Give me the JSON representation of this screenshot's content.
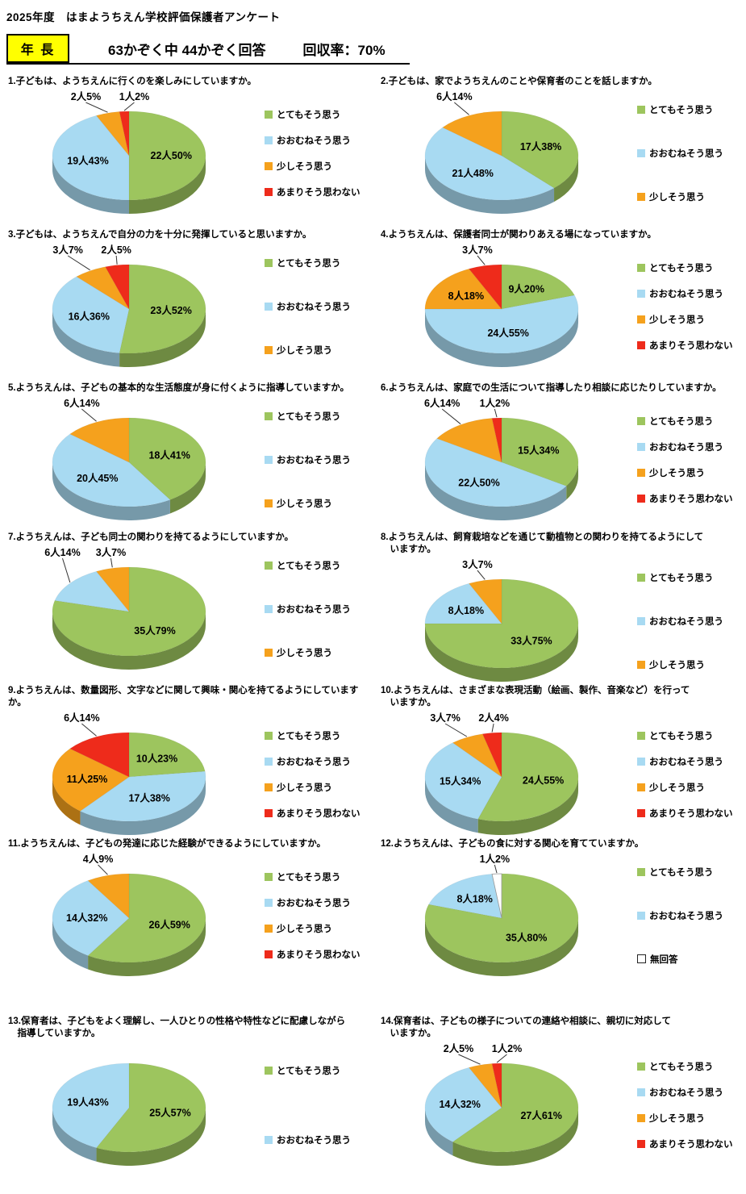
{
  "header": {
    "title": "2025年度　はまようちえん学校評価保護者アンケート",
    "grade": "年 長",
    "respondents": "63かぞく中 44かぞく回答",
    "rate": "回収率：70%",
    "grade_bg": "#FFFF00"
  },
  "colors": {
    "とてもそう思う": "#9DC55E",
    "おおむねそう思う": "#A8DAF2",
    "少しそう思う": "#F5A11D",
    "あまりそう思わない": "#EE2B1B",
    "無回答": "#FFFFFF"
  },
  "chart_data": [
    {
      "type": "pie",
      "title": "1.子どもは、ようちえんに行くのを楽しみにしていますか。",
      "slices": [
        {
          "answer": "とてもそう思う",
          "count": 22,
          "pct": 50,
          "label": "22人50%"
        },
        {
          "answer": "おおむねそう思う",
          "count": 19,
          "pct": 43,
          "label": "19人43%"
        },
        {
          "answer": "少しそう思う",
          "count": 2,
          "pct": 5,
          "label": "2人5%"
        },
        {
          "answer": "あまりそう思わない",
          "count": 1,
          "pct": 2,
          "label": "1人2%"
        }
      ],
      "legend": [
        "とてもそう思う",
        "おおむねそう思う",
        "少しそう思う",
        "あまりそう思わない"
      ]
    },
    {
      "type": "pie",
      "title": "2.子どもは、家でようちえんのことや保育者のことを話しますか。",
      "slices": [
        {
          "answer": "とてもそう思う",
          "count": 17,
          "pct": 38,
          "label": "17人38%"
        },
        {
          "answer": "おおむねそう思う",
          "count": 21,
          "pct": 48,
          "label": "21人48%"
        },
        {
          "answer": "少しそう思う",
          "count": 6,
          "pct": 14,
          "label": "6人14%"
        }
      ],
      "legend": [
        "とてもそう思う",
        "おおむねそう思う",
        "少しそう思う"
      ]
    },
    {
      "type": "pie",
      "title": "3.子どもは、ようちえんで自分の力を十分に発揮していると思いますか。",
      "slices": [
        {
          "answer": "とてもそう思う",
          "count": 23,
          "pct": 52,
          "label": "23人52%"
        },
        {
          "answer": "おおむねそう思う",
          "count": 16,
          "pct": 36,
          "label": "16人36%"
        },
        {
          "answer": "少しそう思う",
          "count": 3,
          "pct": 7,
          "label": "3人7%"
        },
        {
          "answer": "あまりそう思わない",
          "count": 2,
          "pct": 5,
          "label": "2人5%"
        }
      ],
      "legend": [
        "とてもそう思う",
        "おおむねそう思う",
        "少しそう思う"
      ]
    },
    {
      "type": "pie",
      "title": "4.ようちえんは、保護者同士が関わりあえる場になっていますか。",
      "slices": [
        {
          "answer": "とてもそう思う",
          "count": 9,
          "pct": 20,
          "label": "9人20%"
        },
        {
          "answer": "おおむねそう思う",
          "count": 24,
          "pct": 55,
          "label": "24人55%"
        },
        {
          "answer": "少しそう思う",
          "count": 8,
          "pct": 18,
          "label": "8人18%"
        },
        {
          "answer": "あまりそう思わない",
          "count": 3,
          "pct": 7,
          "label": "3人7%"
        }
      ],
      "legend": [
        "とてもそう思う",
        "おおむねそう思う",
        "少しそう思う",
        "あまりそう思わない"
      ]
    },
    {
      "type": "pie",
      "title": "5.ようちえんは、子どもの基本的な生活態度が身に付くように指導していますか。",
      "slices": [
        {
          "answer": "とてもそう思う",
          "count": 18,
          "pct": 41,
          "label": "18人41%"
        },
        {
          "answer": "おおむねそう思う",
          "count": 20,
          "pct": 45,
          "label": "20人45%"
        },
        {
          "answer": "少しそう思う",
          "count": 6,
          "pct": 14,
          "label": "6人14%"
        }
      ],
      "legend": [
        "とてもそう思う",
        "おおむねそう思う",
        "少しそう思う"
      ]
    },
    {
      "type": "pie",
      "title": "6.ようちえんは、家庭での生活について指導したり相談に応じたりしていますか。",
      "slices": [
        {
          "answer": "とてもそう思う",
          "count": 15,
          "pct": 34,
          "label": "15人34%"
        },
        {
          "answer": "おおむねそう思う",
          "count": 22,
          "pct": 50,
          "label": "22人50%"
        },
        {
          "answer": "少しそう思う",
          "count": 6,
          "pct": 14,
          "label": "6人14%"
        },
        {
          "answer": "あまりそう思わない",
          "count": 1,
          "pct": 2,
          "label": "1人2%"
        }
      ],
      "legend": [
        "とてもそう思う",
        "おおむねそう思う",
        "少しそう思う",
        "あまりそう思わない"
      ]
    },
    {
      "type": "pie",
      "title": "7.ようちえんは、子ども同士の関わりを持てるようにしていますか。",
      "slices": [
        {
          "answer": "とてもそう思う",
          "count": 35,
          "pct": 79,
          "label": "35人79%"
        },
        {
          "answer": "おおむねそう思う",
          "count": 6,
          "pct": 14,
          "label": "6人14%"
        },
        {
          "answer": "少しそう思う",
          "count": 3,
          "pct": 7,
          "label": "3人7%"
        }
      ],
      "legend": [
        "とてもそう思う",
        "おおむねそう思う",
        "少しそう思う"
      ]
    },
    {
      "type": "pie",
      "title": "8.ようちえんは、飼育栽培などを通じて動植物との関わりを持てるようにして\n　いますか。",
      "slices": [
        {
          "answer": "とてもそう思う",
          "count": 33,
          "pct": 75,
          "label": "33人75%"
        },
        {
          "answer": "おおむねそう思う",
          "count": 8,
          "pct": 18,
          "label": "8人18%"
        },
        {
          "answer": "少しそう思う",
          "count": 3,
          "pct": 7,
          "label": "3人7%"
        }
      ],
      "legend": [
        "とてもそう思う",
        "おおむねそう思う",
        "少しそう思う"
      ]
    },
    {
      "type": "pie",
      "title": "9.ようちえんは、数量図形、文字などに関して興味・関心を持てるようにしていますか。",
      "slices": [
        {
          "answer": "とてもそう思う",
          "count": 10,
          "pct": 23,
          "label": "10人23%"
        },
        {
          "answer": "おおむねそう思う",
          "count": 17,
          "pct": 38,
          "label": "17人38%"
        },
        {
          "answer": "少しそう思う",
          "count": 11,
          "pct": 25,
          "label": "11人25%"
        },
        {
          "answer": "あまりそう思わない",
          "count": 6,
          "pct": 14,
          "label": "6人14%"
        }
      ],
      "legend": [
        "とてもそう思う",
        "おおむねそう思う",
        "少しそう思う",
        "あまりそう思わない"
      ]
    },
    {
      "type": "pie",
      "title": "10.ようちえんは、さまざまな表現活動（絵画、製作、音楽など）を行って\n　いますか。",
      "slices": [
        {
          "answer": "とてもそう思う",
          "count": 24,
          "pct": 55,
          "label": "24人55%"
        },
        {
          "answer": "おおむねそう思う",
          "count": 15,
          "pct": 34,
          "label": "15人34%"
        },
        {
          "answer": "少しそう思う",
          "count": 3,
          "pct": 7,
          "label": "3人7%"
        },
        {
          "answer": "あまりそう思わない",
          "count": 2,
          "pct": 4,
          "label": "2人4%"
        }
      ],
      "legend": [
        "とてもそう思う",
        "おおむねそう思う",
        "少しそう思う",
        "あまりそう思わない"
      ]
    },
    {
      "type": "pie",
      "title": "11.ようちえんは、子どもの発達に応じた経験ができるようにしていますか。",
      "slices": [
        {
          "answer": "とてもそう思う",
          "count": 26,
          "pct": 59,
          "label": "26人59%"
        },
        {
          "answer": "おおむねそう思う",
          "count": 14,
          "pct": 32,
          "label": "14人32%"
        },
        {
          "answer": "少しそう思う",
          "count": 4,
          "pct": 9,
          "label": "4人9%"
        }
      ],
      "legend": [
        "とてもそう思う",
        "おおむねそう思う",
        "少しそう思う",
        "あまりそう思わない"
      ]
    },
    {
      "type": "pie",
      "title": "12.ようちえんは、子どもの食に対する関心を育てていますか。",
      "slices": [
        {
          "answer": "とてもそう思う",
          "count": 35,
          "pct": 80,
          "label": "35人80%"
        },
        {
          "answer": "おおむねそう思う",
          "count": 8,
          "pct": 18,
          "label": "8人18%"
        },
        {
          "answer": "無回答",
          "count": 1,
          "pct": 2,
          "label": "1人2%"
        }
      ],
      "legend": [
        "とてもそう思う",
        "おおむねそう思う",
        "無回答"
      ]
    },
    {
      "type": "pie",
      "title": "13.保育者は、子どもをよく理解し、一人ひとりの性格や特性などに配慮しながら\n　指導していますか。",
      "slices": [
        {
          "answer": "とてもそう思う",
          "count": 25,
          "pct": 57,
          "label": "25人57%"
        },
        {
          "answer": "おおむねそう思う",
          "count": 19,
          "pct": 43,
          "label": "19人43%"
        }
      ],
      "legend": [
        "とてもそう思う",
        "おおむねそう思う"
      ]
    },
    {
      "type": "pie",
      "title": "14.保育者は、子どもの様子についての連絡や相談に、親切に対応して\n　いますか。",
      "slices": [
        {
          "answer": "とてもそう思う",
          "count": 27,
          "pct": 61,
          "label": "27人61%"
        },
        {
          "answer": "おおむねそう思う",
          "count": 14,
          "pct": 32,
          "label": "14人32%"
        },
        {
          "answer": "少しそう思う",
          "count": 2,
          "pct": 5,
          "label": "2人5%"
        },
        {
          "answer": "あまりそう思わない",
          "count": 1,
          "pct": 2,
          "label": "1人2%"
        }
      ],
      "legend": [
        "とてもそう思う",
        "おおむねそう思う",
        "少しそう思う",
        "あまりそう思わない"
      ]
    }
  ]
}
